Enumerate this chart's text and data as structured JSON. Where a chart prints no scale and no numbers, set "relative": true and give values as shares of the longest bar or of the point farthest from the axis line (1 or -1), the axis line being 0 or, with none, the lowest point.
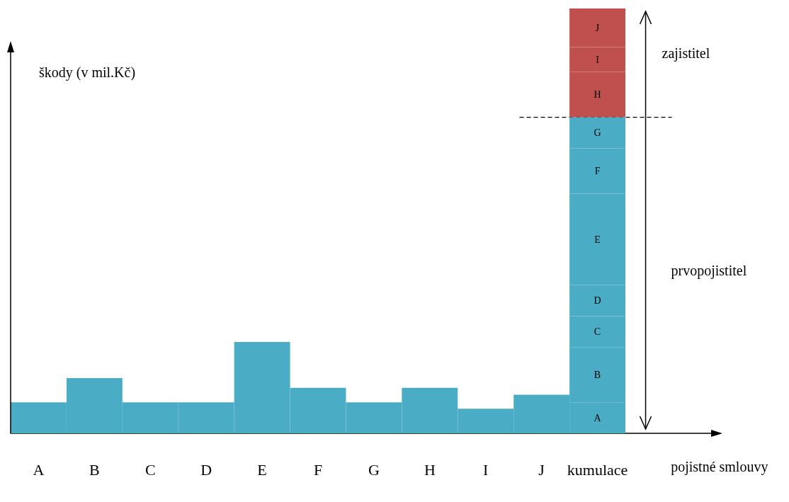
{
  "chart_data": {
    "type": "bar",
    "relative": true,
    "stacked": true,
    "xlabel": "pojistné smlouvy",
    "ylabel": "škody (v mil.Kč)",
    "categories": [
      "A",
      "B",
      "C",
      "D",
      "E",
      "F",
      "G",
      "H",
      "I",
      "J",
      "kumulace"
    ],
    "series": [
      {
        "color": "#4bacc6",
        "values": [
          0.073,
          0.13,
          0.073,
          0.073,
          0.215,
          0.107,
          0.073,
          0.107,
          0.058,
          0.091,
          null
        ]
      },
      {
        "name": "A",
        "color": "#4bacc6",
        "values": [
          null,
          null,
          null,
          null,
          null,
          null,
          null,
          null,
          null,
          null,
          0.073
        ]
      },
      {
        "name": "B",
        "color": "#4bacc6",
        "values": [
          null,
          null,
          null,
          null,
          null,
          null,
          null,
          null,
          null,
          null,
          0.13
        ]
      },
      {
        "name": "C",
        "color": "#4bacc6",
        "values": [
          null,
          null,
          null,
          null,
          null,
          null,
          null,
          null,
          null,
          null,
          0.073
        ]
      },
      {
        "name": "D",
        "color": "#4bacc6",
        "values": [
          null,
          null,
          null,
          null,
          null,
          null,
          null,
          null,
          null,
          null,
          0.073
        ]
      },
      {
        "name": "E",
        "color": "#4bacc6",
        "values": [
          null,
          null,
          null,
          null,
          null,
          null,
          null,
          null,
          null,
          null,
          0.215
        ]
      },
      {
        "name": "F",
        "color": "#4bacc6",
        "values": [
          null,
          null,
          null,
          null,
          null,
          null,
          null,
          null,
          null,
          null,
          0.107
        ]
      },
      {
        "name": "G",
        "color": "#4bacc6",
        "values": [
          null,
          null,
          null,
          null,
          null,
          null,
          null,
          null,
          null,
          null,
          0.073
        ]
      },
      {
        "name": "H",
        "color": "#c0504d",
        "values": [
          null,
          null,
          null,
          null,
          null,
          null,
          null,
          null,
          null,
          null,
          0.107
        ]
      },
      {
        "name": "I",
        "color": "#c0504d",
        "values": [
          null,
          null,
          null,
          null,
          null,
          null,
          null,
          null,
          null,
          null,
          0.058
        ]
      },
      {
        "name": "J",
        "color": "#c0504d",
        "values": [
          null,
          null,
          null,
          null,
          null,
          null,
          null,
          null,
          null,
          null,
          0.091
        ]
      }
    ],
    "ref_lines": [
      {
        "axis": "y",
        "value": 0.744,
        "line_style": "dashed",
        "color": "#000000"
      }
    ],
    "annotations": [
      "zajistitel",
      "prvopojistitel"
    ]
  }
}
